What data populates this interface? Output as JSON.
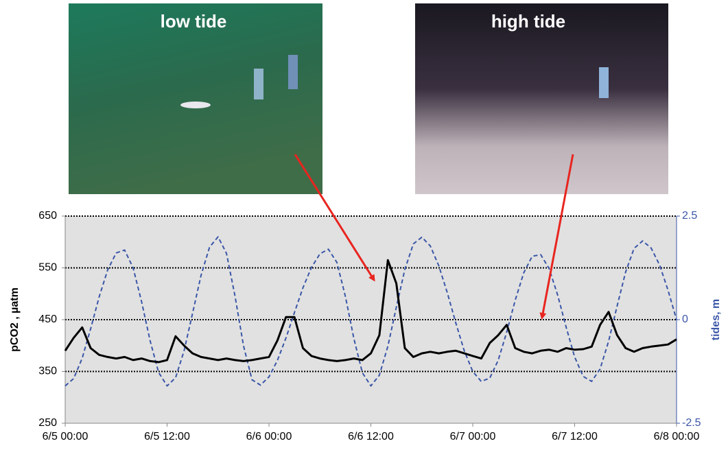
{
  "chart_data": {
    "type": "line",
    "annotations": [
      "low tide",
      "high tide"
    ],
    "ylabel": "pCO2 , µatm",
    "y2label": "tides, m",
    "x": [
      "6/5 00:00",
      "6/5 01:00",
      "6/5 02:00",
      "6/5 03:00",
      "6/5 04:00",
      "6/5 05:00",
      "6/5 06:00",
      "6/5 07:00",
      "6/5 08:00",
      "6/5 09:00",
      "6/5 10:00",
      "6/5 11:00",
      "6/5 12:00",
      "6/5 13:00",
      "6/5 14:00",
      "6/5 15:00",
      "6/5 16:00",
      "6/5 17:00",
      "6/5 18:00",
      "6/5 19:00",
      "6/5 20:00",
      "6/5 21:00",
      "6/5 22:00",
      "6/5 23:00",
      "6/6 00:00",
      "6/6 01:00",
      "6/6 02:00",
      "6/6 03:00",
      "6/6 04:00",
      "6/6 05:00",
      "6/6 06:00",
      "6/6 07:00",
      "6/6 08:00",
      "6/6 09:00",
      "6/6 10:00",
      "6/6 11:00",
      "6/6 12:00",
      "6/6 13:00",
      "6/6 14:00",
      "6/6 15:00",
      "6/6 16:00",
      "6/6 17:00",
      "6/6 18:00",
      "6/6 19:00",
      "6/6 20:00",
      "6/6 21:00",
      "6/6 22:00",
      "6/6 23:00",
      "6/7 00:00",
      "6/7 01:00",
      "6/7 02:00",
      "6/7 03:00",
      "6/7 04:00",
      "6/7 05:00",
      "6/7 06:00",
      "6/7 07:00",
      "6/7 08:00",
      "6/7 09:00",
      "6/7 10:00",
      "6/7 11:00",
      "6/7 12:00",
      "6/7 13:00",
      "6/7 14:00",
      "6/7 15:00",
      "6/7 16:00",
      "6/7 17:00",
      "6/7 18:00",
      "6/7 19:00",
      "6/7 20:00",
      "6/7 21:00",
      "6/7 22:00",
      "6/7 23:00",
      "6/8 00:00"
    ],
    "xlim": [
      "6/5 00:00",
      "6/8 00:00"
    ],
    "xticks": [
      "6/5 00:00",
      "6/5 12:00",
      "6/6 00:00",
      "6/6 12:00",
      "6/7 00:00",
      "6/7 12:00",
      "6/8 00:00"
    ],
    "ylim": [
      250,
      650
    ],
    "yticks": [
      250,
      350,
      450,
      550,
      650
    ],
    "y2lim": [
      -2.5,
      2.5
    ],
    "y2ticks": [
      -2.5,
      0,
      2.5
    ],
    "grid": true,
    "series": [
      {
        "color": "#000000",
        "dashed": false,
        "values": [
          390,
          415,
          435,
          395,
          382,
          378,
          375,
          378,
          372,
          375,
          370,
          368,
          372,
          418,
          400,
          385,
          378,
          375,
          372,
          375,
          372,
          370,
          372,
          375,
          378,
          410,
          455,
          455,
          395,
          380,
          375,
          372,
          370,
          372,
          375,
          372,
          385,
          420,
          565,
          520,
          395,
          378,
          385,
          388,
          385,
          388,
          390,
          385,
          380,
          375,
          405,
          420,
          440,
          395,
          388,
          385,
          390,
          392,
          388,
          395,
          392,
          393,
          398,
          440,
          465,
          420,
          395,
          388,
          395,
          398,
          400,
          402,
          412
        ]
      },
      {
        "color": "#3a56a8",
        "dashed": true,
        "axis": "y2",
        "values": [
          -1.6,
          -1.42,
          -0.93,
          -0.22,
          0.55,
          1.2,
          1.61,
          1.68,
          1.25,
          0.43,
          -0.51,
          -1.27,
          -1.6,
          -1.4,
          -0.75,
          0.15,
          1.07,
          1.75,
          2.0,
          1.6,
          0.57,
          -0.63,
          -1.45,
          -1.58,
          -1.38,
          -0.98,
          -0.44,
          0.17,
          0.77,
          1.26,
          1.59,
          1.7,
          1.38,
          0.56,
          -0.46,
          -1.28,
          -1.6,
          -1.34,
          -0.64,
          0.3,
          1.21,
          1.83,
          1.99,
          1.78,
          1.3,
          0.65,
          -0.08,
          -0.75,
          -1.25,
          -1.49,
          -1.41,
          -0.98,
          -0.3,
          0.47,
          1.13,
          1.53,
          1.57,
          1.23,
          0.59,
          -0.18,
          -0.9,
          -1.37,
          -1.49,
          -1.19,
          -0.52,
          0.33,
          1.15,
          1.72,
          1.9,
          1.73,
          1.32,
          0.71,
          0
        ]
      }
    ]
  }
}
